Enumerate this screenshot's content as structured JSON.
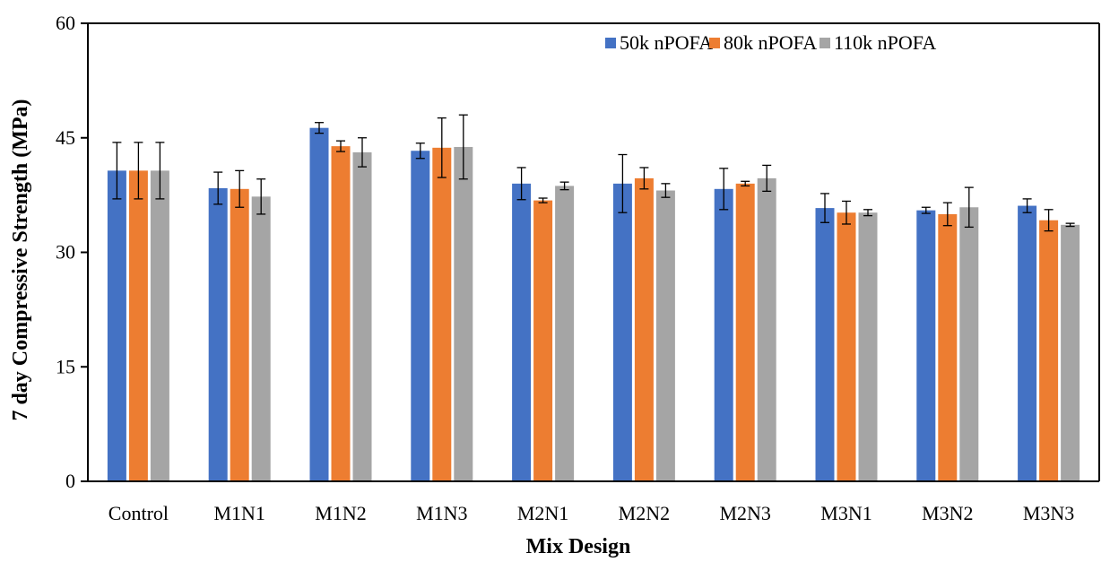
{
  "chart_data": {
    "type": "bar",
    "title": "",
    "xlabel": "Mix Design",
    "ylabel": "7 day Compressive Strength (MPa)",
    "ylim": [
      0,
      60
    ],
    "yticks": [
      0,
      15,
      30,
      45,
      60
    ],
    "grid": false,
    "legend_position": "top-right",
    "categories": [
      "Control",
      "M1N1",
      "M1N2",
      "M1N3",
      "M2N1",
      "M2N2",
      "M2N3",
      "M3N1",
      "M3N2",
      "M3N3"
    ],
    "series": [
      {
        "name": "50k nPOFA",
        "color": "#4472C4",
        "values": [
          40.7,
          38.4,
          46.3,
          43.3,
          39.0,
          39.0,
          38.3,
          35.8,
          35.5,
          36.1
        ],
        "errors": [
          3.7,
          2.1,
          0.7,
          1.0,
          2.1,
          3.8,
          2.7,
          1.9,
          0.4,
          0.9
        ]
      },
      {
        "name": "80k nPOFA",
        "color": "#ED7D31",
        "values": [
          40.7,
          38.3,
          43.9,
          43.7,
          36.8,
          39.7,
          39.0,
          35.2,
          35.0,
          34.2
        ],
        "errors": [
          3.7,
          2.4,
          0.7,
          3.9,
          0.3,
          1.4,
          0.3,
          1.5,
          1.5,
          1.4
        ]
      },
      {
        "name": "110k nPOFA",
        "color": "#A5A5A5",
        "values": [
          40.7,
          37.3,
          43.1,
          43.8,
          38.7,
          38.1,
          39.7,
          35.2,
          35.9,
          33.6
        ],
        "errors": [
          3.7,
          2.3,
          1.9,
          4.2,
          0.5,
          0.9,
          1.7,
          0.4,
          2.6,
          0.2
        ]
      }
    ]
  }
}
